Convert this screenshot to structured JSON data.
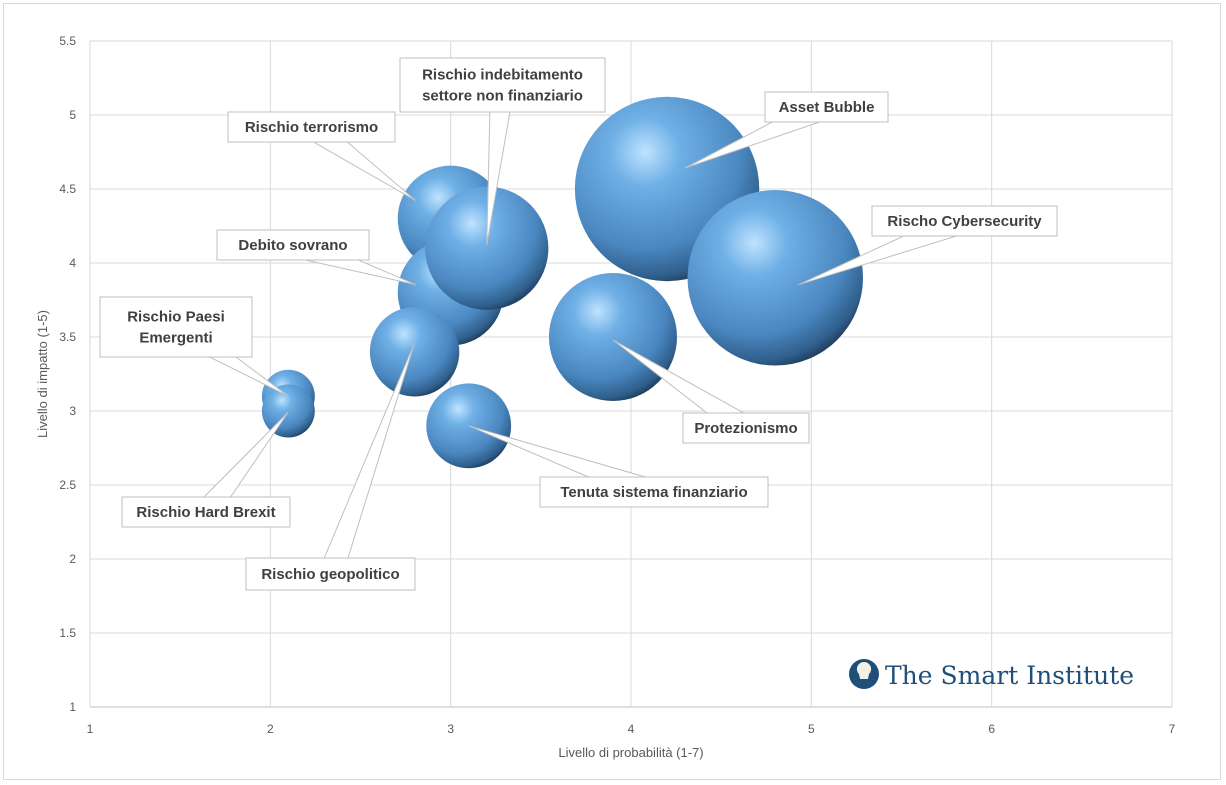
{
  "chart_data": {
    "type": "bubble",
    "title": "",
    "xlabel": "Livello di probabilità (1-7)",
    "ylabel": "Livello di impatto (1-5)",
    "xlim": [
      1,
      7
    ],
    "ylim": [
      1,
      5.5
    ],
    "xticks": [
      "1",
      "2",
      "3",
      "4",
      "5",
      "6",
      "7"
    ],
    "yticks": [
      "1",
      "1.5",
      "2",
      "2.5",
      "3",
      "3.5",
      "4",
      "4.5",
      "5",
      "5.5"
    ],
    "grid": true,
    "bubble_color": "#5b9bd5",
    "points": [
      {
        "label": "Asset Bubble",
        "x": 4.2,
        "y": 4.5,
        "size": 85
      },
      {
        "label": "Rischo Cybersecurity",
        "x": 4.8,
        "y": 3.9,
        "size": 77
      },
      {
        "label": "Protezionismo",
        "x": 3.9,
        "y": 3.5,
        "size": 41
      },
      {
        "label": "Rischio terrorismo",
        "x": 3.0,
        "y": 4.3,
        "size": 28
      },
      {
        "label": "Debito sovrano",
        "x": 3.0,
        "y": 3.8,
        "size": 28
      },
      {
        "label": "Rischio indebitamento settore non finanziario",
        "lines": [
          "Rischio indebitamento",
          "settore non finanziario"
        ],
        "x": 3.2,
        "y": 4.1,
        "size": 38
      },
      {
        "label": "Rischio geopolitico",
        "x": 2.8,
        "y": 3.4,
        "size": 20
      },
      {
        "label": "Tenuta sistema finanziario",
        "x": 3.1,
        "y": 2.9,
        "size": 18
      },
      {
        "label": "Rischio Hard Brexit",
        "x": 2.1,
        "y": 3.0,
        "size": 7
      },
      {
        "label": "Rischio Paesi Emergenti",
        "lines": [
          "Rischio Paesi",
          "Emergenti"
        ],
        "x": 2.1,
        "y": 3.1,
        "size": 7
      }
    ]
  },
  "logo": {
    "text": "The Smart Institute"
  }
}
